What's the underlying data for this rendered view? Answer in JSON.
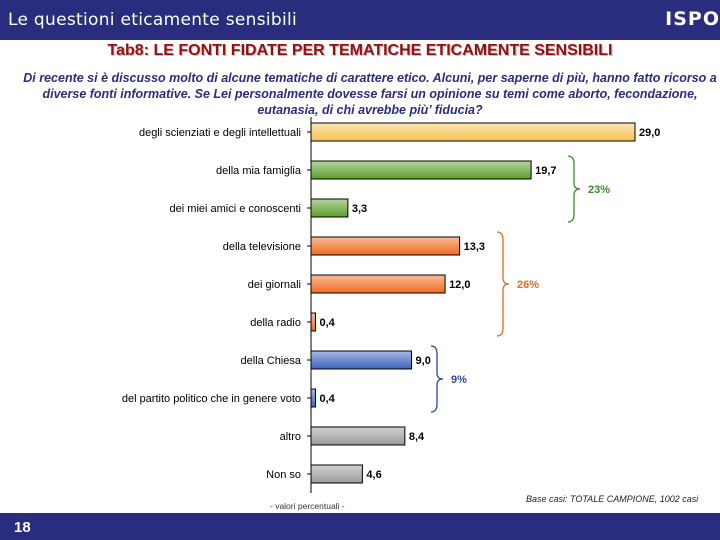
{
  "header": {
    "title": "Le questioni eticamente sensibili",
    "brand": "ISPO"
  },
  "heading": "Tab8: LE FONTI FIDATE PER TEMATICHE ETICAMENTE SENSIBILI",
  "intro": "Di recente si è discusso molto di alcune tematiche di carattere etico. Alcuni, per saperne di più, hanno fatto ricorso a diverse fonti informative. Se Lei personalmente dovesse farsi un opinione su temi come aborto, fecondazione, eutanasia, di chi avrebbe più’ fiducia?",
  "footer": {
    "values_note": "- valori percentuali -",
    "base_note": "Base casi: TOTALE CAMPIONE, 1002 casi",
    "page_number": "18"
  },
  "chart_data": {
    "type": "bar",
    "orientation": "horizontal",
    "categories": [
      "degli scienziati e degli intellettuali",
      "della mia famiglia",
      "dei miei amici e conoscenti",
      "della televisione",
      "dei giornali",
      "della radio",
      "della Chiesa",
      "del partito politico che in genere voto",
      "altro",
      "Non so"
    ],
    "values": [
      29.0,
      19.7,
      3.3,
      13.3,
      12.0,
      0.4,
      9.0,
      0.4,
      8.4,
      4.6
    ],
    "value_labels": [
      "29,0",
      "19,7",
      "3,3",
      "13,3",
      "12,0",
      "0,4",
      "9,0",
      "0,4",
      "8,4",
      "4,6"
    ],
    "bar_colors": [
      "#f7c255",
      "#5aa02a",
      "#5aa02a",
      "#f26b1d",
      "#f26b1d",
      "#f26b1d",
      "#3d62c0",
      "#3d62c0",
      "#9a9a9a",
      "#9a9a9a"
    ],
    "xlim": [
      0,
      29.0
    ],
    "groups": [
      {
        "label": "23%",
        "first": 1,
        "last": 2,
        "color": "#3c8a2a"
      },
      {
        "label": "26%",
        "first": 3,
        "last": 5,
        "color": "#e06a1e"
      },
      {
        "label": "9%",
        "first": 6,
        "last": 7,
        "color": "#2a4a9a"
      }
    ]
  }
}
